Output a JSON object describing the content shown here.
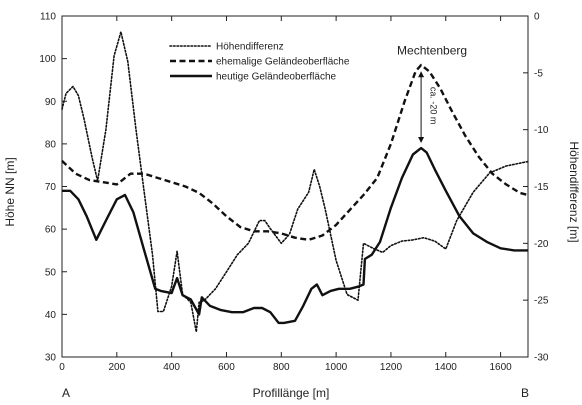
{
  "chart_data": {
    "type": "line",
    "xlabel": "Profillänge [m]",
    "ylabel": "Höhe NN [m]",
    "y2label": "Höhendifferenz [m]",
    "xlim": [
      0,
      1700
    ],
    "ylim": [
      30,
      110
    ],
    "y2lim": [
      -30,
      0
    ],
    "x_ticks": [
      0,
      200,
      400,
      600,
      800,
      1000,
      1200,
      1400,
      1600
    ],
    "y_ticks": [
      30,
      40,
      50,
      60,
      70,
      80,
      90,
      100,
      110
    ],
    "y2_ticks": [
      -30,
      -25,
      -20,
      -15,
      -10,
      -5,
      0
    ],
    "grid": false,
    "legend_position": "top-center",
    "corner_labels": {
      "left": "A",
      "right": "B"
    },
    "annotations": {
      "peak_name": "Mechtenberg",
      "difference": "ca. -20 m"
    },
    "series": [
      {
        "name": "Höhendifferenz",
        "style": "dotted",
        "axis": "right",
        "x": [
          0,
          15,
          40,
          60,
          80,
          110,
          130,
          160,
          190,
          215,
          240,
          270,
          300,
          330,
          350,
          370,
          400,
          420,
          440,
          470,
          490,
          500,
          520,
          560,
          600,
          640,
          680,
          700,
          720,
          740,
          760,
          800,
          830,
          860,
          900,
          920,
          940,
          960,
          1000,
          1040,
          1080,
          1100,
          1140,
          1170,
          1200,
          1240,
          1280,
          1320,
          1360,
          1400,
          1440,
          1500,
          1560,
          1620,
          1700
        ],
        "values": [
          -8.2,
          -6.8,
          -6.2,
          -7.0,
          -9.0,
          -12.5,
          -14.5,
          -10.0,
          -3.5,
          -1.4,
          -4.0,
          -10.0,
          -15.5,
          -21.0,
          -26.0,
          -26.0,
          -23.8,
          -20.7,
          -24.5,
          -25.2,
          -27.8,
          -25.2,
          -25.0,
          -24.0,
          -22.5,
          -21.0,
          -20.0,
          -19.0,
          -18.0,
          -18.0,
          -18.7,
          -20.0,
          -19.2,
          -17.0,
          -15.5,
          -13.5,
          -15.0,
          -17.0,
          -21.5,
          -24.5,
          -25.0,
          -20.0,
          -20.5,
          -20.8,
          -20.2,
          -19.8,
          -19.7,
          -19.5,
          -19.8,
          -20.5,
          -18.0,
          -15.5,
          -13.8,
          -13.2,
          -12.8
        ]
      },
      {
        "name": "ehemalige Geländeoberfläche",
        "style": "dashed",
        "axis": "left",
        "x": [
          0,
          50,
          100,
          150,
          200,
          250,
          300,
          350,
          400,
          450,
          500,
          550,
          600,
          650,
          700,
          750,
          800,
          850,
          900,
          950,
          1000,
          1050,
          1100,
          1150,
          1200,
          1250,
          1290,
          1310,
          1340,
          1380,
          1420,
          1470,
          1520,
          1570,
          1620,
          1670,
          1700
        ],
        "values": [
          76,
          73,
          71.5,
          71,
          70.5,
          73,
          73,
          72,
          71,
          70,
          68.5,
          66,
          63,
          60.5,
          59.5,
          59.5,
          59,
          58,
          57.5,
          58.5,
          61,
          64.5,
          68,
          72,
          80,
          90,
          97,
          98.5,
          97,
          93,
          88,
          82,
          77,
          73,
          70.5,
          68.5,
          68
        ]
      },
      {
        "name": "heutige Geländeoberfläche",
        "style": "solid",
        "axis": "left",
        "x": [
          0,
          30,
          60,
          90,
          125,
          160,
          200,
          230,
          260,
          300,
          340,
          360,
          400,
          420,
          440,
          470,
          500,
          510,
          540,
          580,
          620,
          660,
          700,
          730,
          760,
          790,
          810,
          850,
          880,
          910,
          930,
          950,
          980,
          1010,
          1050,
          1080,
          1100,
          1105,
          1130,
          1160,
          1200,
          1240,
          1280,
          1310,
          1330,
          1360,
          1400,
          1450,
          1500,
          1550,
          1600,
          1650,
          1700
        ],
        "values": [
          69,
          69,
          67,
          63,
          57.5,
          62,
          67,
          68,
          64,
          55,
          46,
          45.5,
          45,
          48.5,
          44.5,
          43.5,
          40,
          44,
          42,
          41,
          40.5,
          40.5,
          41.5,
          41.5,
          40.5,
          38,
          38,
          38.5,
          42,
          46,
          47,
          44.5,
          45.5,
          46,
          46,
          46.5,
          47,
          53,
          54,
          57,
          65,
          72,
          77.5,
          79,
          78,
          74,
          69,
          63,
          59,
          57,
          55.5,
          55,
          55
        ]
      }
    ]
  }
}
